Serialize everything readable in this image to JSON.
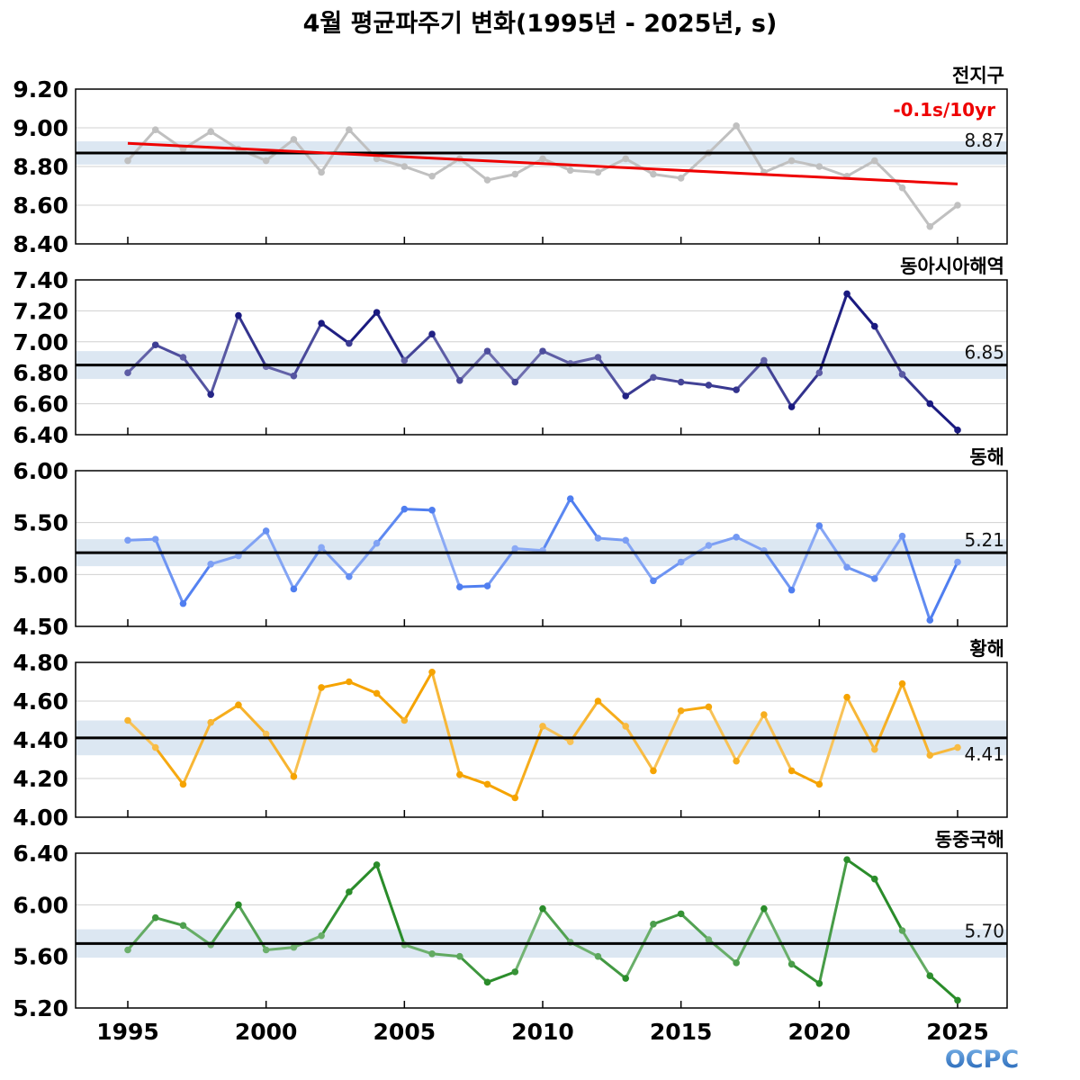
{
  "title": "4월 평균파주기 변화(1995년 - 2025년, s)",
  "logo_text": "OCPC",
  "colors": {
    "mean_band": "#dce7f2",
    "mean_line": "#000000",
    "trend": "#ee0000",
    "grid": "#d0d0d0"
  },
  "chart_data": [
    {
      "type": "line",
      "region": "전지구",
      "x": [
        1995,
        1996,
        1997,
        1998,
        1999,
        2000,
        2001,
        2002,
        2003,
        2004,
        2005,
        2006,
        2007,
        2008,
        2009,
        2010,
        2011,
        2012,
        2013,
        2014,
        2015,
        2016,
        2017,
        2018,
        2019,
        2020,
        2021,
        2022,
        2023,
        2024,
        2025
      ],
      "values": [
        8.83,
        8.99,
        8.89,
        8.98,
        8.89,
        8.83,
        8.94,
        8.77,
        8.99,
        8.84,
        8.8,
        8.75,
        8.84,
        8.73,
        8.76,
        8.84,
        8.78,
        8.77,
        8.84,
        8.76,
        8.74,
        8.87,
        9.01,
        8.77,
        8.83,
        8.8,
        8.75,
        8.83,
        8.69,
        8.49,
        8.6
      ],
      "ylim": [
        8.4,
        9.2
      ],
      "yticks": [
        "9.20",
        "9.00",
        "8.80",
        "8.60",
        "8.40"
      ],
      "mean": 8.87,
      "mean_label": "8.87",
      "band": 0.06,
      "color": "#c0c0c0",
      "trend": {
        "label": "-0.1s/10yr",
        "start": 8.92,
        "end": 8.71
      }
    },
    {
      "type": "line",
      "region": "동아시아해역",
      "x": [
        1995,
        1996,
        1997,
        1998,
        1999,
        2000,
        2001,
        2002,
        2003,
        2004,
        2005,
        2006,
        2007,
        2008,
        2009,
        2010,
        2011,
        2012,
        2013,
        2014,
        2015,
        2016,
        2017,
        2018,
        2019,
        2020,
        2021,
        2022,
        2023,
        2024,
        2025
      ],
      "values": [
        6.8,
        6.98,
        6.9,
        6.66,
        7.17,
        6.84,
        6.78,
        7.12,
        6.99,
        7.19,
        6.88,
        7.05,
        6.75,
        6.94,
        6.74,
        6.94,
        6.86,
        6.9,
        6.65,
        6.77,
        6.74,
        6.72,
        6.69,
        6.88,
        6.58,
        6.8,
        7.31,
        7.1,
        6.79,
        6.6,
        6.43
      ],
      "ylim": [
        6.4,
        7.4
      ],
      "yticks": [
        "7.40",
        "7.20",
        "7.00",
        "6.80",
        "6.60",
        "6.40"
      ],
      "mean": 6.85,
      "mean_label": "6.85",
      "band": 0.09,
      "color": "#1a1a80"
    },
    {
      "type": "line",
      "region": "동해",
      "x": [
        1995,
        1996,
        1997,
        1998,
        1999,
        2000,
        2001,
        2002,
        2003,
        2004,
        2005,
        2006,
        2007,
        2008,
        2009,
        2010,
        2011,
        2012,
        2013,
        2014,
        2015,
        2016,
        2017,
        2018,
        2019,
        2020,
        2021,
        2022,
        2023,
        2024,
        2025
      ],
      "values": [
        5.33,
        5.34,
        4.72,
        5.1,
        5.18,
        5.42,
        4.86,
        5.26,
        4.98,
        5.3,
        5.63,
        5.62,
        4.88,
        4.89,
        5.25,
        5.23,
        5.73,
        5.35,
        5.33,
        4.94,
        5.12,
        5.28,
        5.36,
        5.23,
        4.85,
        5.47,
        5.07,
        4.96,
        5.37,
        4.56,
        5.12
      ],
      "ylim": [
        4.5,
        6.0
      ],
      "yticks": [
        "6.00",
        "5.50",
        "5.00",
        "4.50"
      ],
      "mean": 5.21,
      "mean_label": "5.21",
      "band": 0.13,
      "color": "#4f7ef0"
    },
    {
      "type": "line",
      "region": "황해",
      "x": [
        1995,
        1996,
        1997,
        1998,
        1999,
        2000,
        2001,
        2002,
        2003,
        2004,
        2005,
        2006,
        2007,
        2008,
        2009,
        2010,
        2011,
        2012,
        2013,
        2014,
        2015,
        2016,
        2017,
        2018,
        2019,
        2020,
        2021,
        2022,
        2023,
        2024,
        2025
      ],
      "values": [
        4.5,
        4.36,
        4.17,
        4.49,
        4.58,
        4.43,
        4.21,
        4.67,
        4.7,
        4.64,
        4.5,
        4.75,
        4.22,
        4.17,
        4.1,
        4.47,
        4.39,
        4.6,
        4.47,
        4.24,
        4.55,
        4.57,
        4.29,
        4.53,
        4.24,
        4.17,
        4.62,
        4.35,
        4.69,
        4.32,
        4.36
      ],
      "ylim": [
        4.0,
        4.8
      ],
      "yticks": [
        "4.80",
        "4.60",
        "4.40",
        "4.20",
        "4.00"
      ],
      "mean": 4.41,
      "mean_label": "4.41",
      "band": 0.09,
      "color": "#f5a300"
    },
    {
      "type": "line",
      "region": "동중국해",
      "x": [
        1995,
        1996,
        1997,
        1998,
        1999,
        2000,
        2001,
        2002,
        2003,
        2004,
        2005,
        2006,
        2007,
        2008,
        2009,
        2010,
        2011,
        2012,
        2013,
        2014,
        2015,
        2016,
        2017,
        2018,
        2019,
        2020,
        2021,
        2022,
        2023,
        2024,
        2025
      ],
      "values": [
        5.65,
        5.9,
        5.84,
        5.69,
        6.0,
        5.65,
        5.67,
        5.76,
        6.1,
        6.31,
        5.69,
        5.62,
        5.6,
        5.4,
        5.48,
        5.97,
        5.71,
        5.6,
        5.43,
        5.85,
        5.93,
        5.73,
        5.55,
        5.97,
        5.54,
        5.39,
        6.35,
        6.2,
        5.8,
        5.45,
        5.26
      ],
      "ylim": [
        5.2,
        6.4
      ],
      "yticks": [
        "6.40",
        "6.00",
        "5.60",
        "5.20"
      ],
      "mean": 5.7,
      "mean_label": "5.70",
      "band": 0.11,
      "color": "#2a8c2a"
    }
  ],
  "xticks": [
    "1995",
    "2000",
    "2005",
    "2010",
    "2015",
    "2020",
    "2025"
  ]
}
